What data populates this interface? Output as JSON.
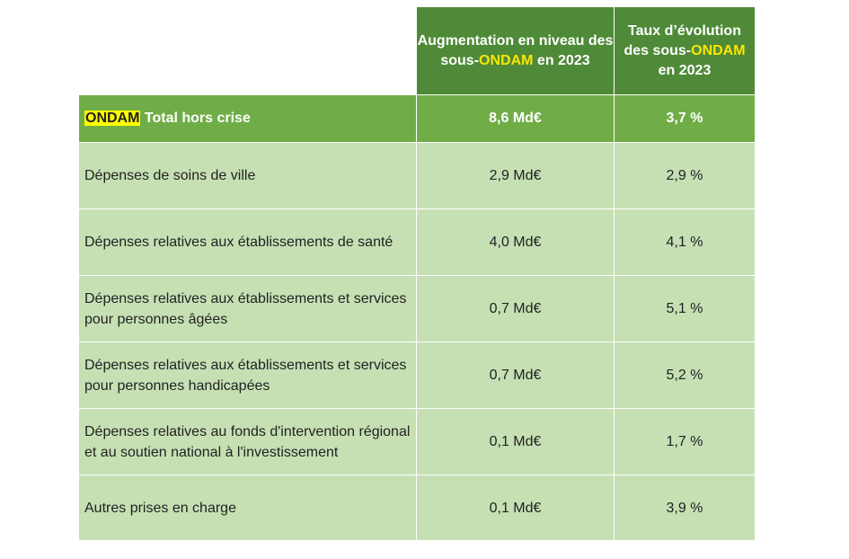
{
  "header": {
    "col2_part1": "Augmentation en niveau des sous-",
    "col2_hl": "ONDAM",
    "col2_part2": " en 2023",
    "col3_part1": "Taux d’évolution des sous-",
    "col3_hl": "ONDAM",
    "col3_part2": " en 2023"
  },
  "total": {
    "label_hl": "ONDAM",
    "label_rest": " Total hors crise",
    "niveau": "8,6 Md€",
    "taux": "3,7 %"
  },
  "rows": [
    {
      "label": "Dépenses de soins de ville",
      "niveau": "2,9 Md€",
      "taux": "2,9 %"
    },
    {
      "label": "Dépenses relatives aux établissements de santé",
      "niveau": "4,0 Md€",
      "taux": "4,1 %"
    },
    {
      "label": "Dépenses relatives aux établissements et services pour personnes âgées",
      "niveau": "0,7 Md€",
      "taux": "5,1 %"
    },
    {
      "label": "Dépenses relatives aux établissements et services pour personnes handicapées",
      "niveau": "0,7 Md€",
      "taux": "5,2 %"
    },
    {
      "label": "Dépenses relatives au fonds d'intervention régional et au soutien national à l'investissement",
      "niveau": "0,1 Md€",
      "taux": "1,7 %"
    },
    {
      "label": "Autres prises en charge",
      "niveau": "0,1 Md€",
      "taux": "3,9 %"
    }
  ],
  "colors": {
    "header_bg": "#4e8a37",
    "total_bg": "#70ad47",
    "row_bg": "#c6e0b4",
    "highlight_text": "#ffe600",
    "highlight_bg": "#ffff00"
  }
}
